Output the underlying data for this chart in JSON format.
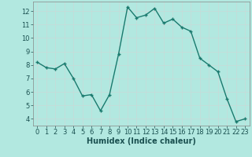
{
  "x": [
    0,
    1,
    2,
    3,
    4,
    5,
    6,
    7,
    8,
    9,
    10,
    11,
    12,
    13,
    14,
    15,
    16,
    17,
    18,
    19,
    20,
    21,
    22,
    23
  ],
  "y": [
    8.2,
    7.8,
    7.7,
    8.1,
    7.0,
    5.7,
    5.8,
    4.6,
    5.8,
    8.8,
    12.3,
    11.5,
    11.7,
    12.2,
    11.1,
    11.4,
    10.8,
    10.5,
    8.5,
    8.0,
    7.5,
    5.5,
    3.8,
    4.0
  ],
  "xlabel": "Humidex (Indice chaleur)",
  "line_color": "#1a7a6e",
  "marker": "+",
  "marker_size": 3,
  "bg_color": "#b2e8e0",
  "grid_color": "#c8dbd8",
  "xlim": [
    -0.5,
    23.5
  ],
  "ylim": [
    3.5,
    12.7
  ],
  "yticks": [
    4,
    5,
    6,
    7,
    8,
    9,
    10,
    11,
    12
  ],
  "xticks": [
    0,
    1,
    2,
    3,
    4,
    5,
    6,
    7,
    8,
    9,
    10,
    11,
    12,
    13,
    14,
    15,
    16,
    17,
    18,
    19,
    20,
    21,
    22,
    23
  ],
  "xlabel_fontsize": 7,
  "tick_fontsize": 6,
  "linewidth": 1.0
}
